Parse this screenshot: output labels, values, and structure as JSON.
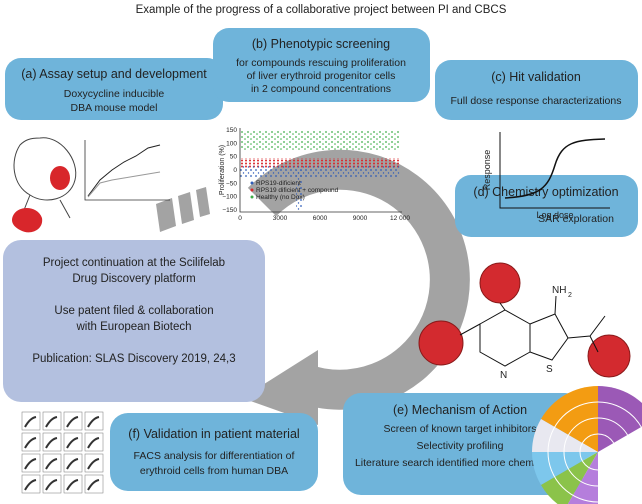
{
  "title": "Example of the progress of a collaborative project between PI and CBCS",
  "panels": [
    {
      "heading": "(a) Assay setup and development",
      "lines": [
        "Doxycycline inducible",
        "DBA mouse model"
      ]
    },
    {
      "heading": "(b) Phenotypic screening",
      "lines": [
        "for compounds rescuing proliferation",
        "of liver erythroid progenitor cells",
        "in 2 compound concentrations"
      ]
    },
    {
      "heading": "(c) Hit validation",
      "lines": [
        "Full dose response characterizations"
      ]
    },
    {
      "heading": "(d) Chemistry optimization",
      "lines": [
        "SAR exploration"
      ]
    },
    {
      "heading": "(e) Mechanism of Action",
      "lines": [
        "Screen of known target inhibitors",
        "Selectivity profiling",
        "Literature search identified more chemotypes"
      ]
    },
    {
      "heading": "(f) Validation in patient material",
      "lines": [
        "FACS analysis for differentiation of",
        "erythroid cells from human DBA"
      ]
    }
  ],
  "summary": {
    "lines": [
      "Project continuation at the Scilifelab",
      "Drug Discovery platform",
      "Use patent filed & collaboration",
      "with European Biotech",
      "Publication: SLAS Discovery 2019, 24,3"
    ]
  },
  "dose_plot": {
    "y_label": "Response",
    "x_label": "Log dose"
  },
  "screen_plot": {
    "y_label": "Proliferation (%)",
    "yticks": [
      "150",
      "100",
      "50",
      "0",
      "−50",
      "−100",
      "−150"
    ],
    "xticks": [
      "0",
      "3000",
      "6000",
      "9000",
      "12 000"
    ],
    "legend": [
      "RPS19-dificient",
      "RPS19 dificient + compound",
      "Healthy (no Dox)"
    ]
  },
  "chemistry": {
    "labels": [
      "NH",
      "2",
      "N",
      "S"
    ]
  }
}
